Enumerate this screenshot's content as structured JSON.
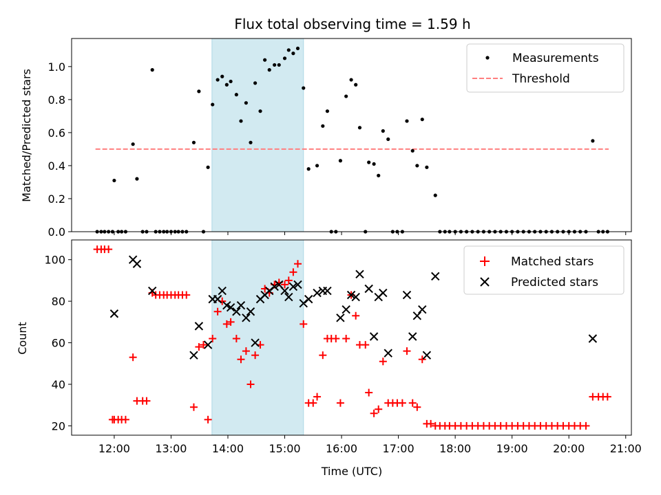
{
  "chart_data": [
    {
      "type": "scatter",
      "title": "Flux total observing time = 1.59 h",
      "xlabel": "",
      "ylabel": "Matched/Predicted stars",
      "xlim": [
        11.25,
        21.1
      ],
      "ylim": [
        0,
        1.17
      ],
      "yticks": [
        0.0,
        0.2,
        0.4,
        0.6,
        0.8,
        1.0
      ],
      "ytick_labels": [
        "0.0",
        "0.2",
        "0.4",
        "0.6",
        "0.8",
        "1.0"
      ],
      "legend_position": "top-right",
      "shaded_region": {
        "x": [
          13.72,
          15.33
        ],
        "color": "#add8e6"
      },
      "threshold": {
        "name": "Threshold",
        "value": 0.5,
        "x": [
          11.67,
          20.7
        ],
        "color": "#ff7f7f"
      },
      "measurements": {
        "name": "Measurements",
        "color": "#000000",
        "points": [
          [
            11.7,
            0
          ],
          [
            11.77,
            0
          ],
          [
            11.83,
            0
          ],
          [
            11.9,
            0
          ],
          [
            11.97,
            0
          ],
          [
            12.0,
            0.31
          ],
          [
            12.07,
            0
          ],
          [
            12.13,
            0
          ],
          [
            12.2,
            0
          ],
          [
            12.33,
            0.53
          ],
          [
            12.4,
            0.32
          ],
          [
            12.5,
            0
          ],
          [
            12.57,
            0
          ],
          [
            12.67,
            0.98
          ],
          [
            12.73,
            0
          ],
          [
            12.8,
            0
          ],
          [
            12.87,
            0
          ],
          [
            12.93,
            0
          ],
          [
            13.0,
            0
          ],
          [
            13.07,
            0
          ],
          [
            13.13,
            0
          ],
          [
            13.2,
            0
          ],
          [
            13.27,
            0
          ],
          [
            13.4,
            0.54
          ],
          [
            13.49,
            0.85
          ],
          [
            13.57,
            0
          ],
          [
            13.65,
            0.39
          ],
          [
            13.73,
            0.77
          ],
          [
            13.82,
            0.92
          ],
          [
            13.9,
            0.94
          ],
          [
            13.98,
            0.89
          ],
          [
            14.05,
            0.91
          ],
          [
            14.15,
            0.83
          ],
          [
            14.23,
            0.67
          ],
          [
            14.32,
            0.78
          ],
          [
            14.4,
            0.54
          ],
          [
            14.48,
            0.9
          ],
          [
            14.57,
            0.73
          ],
          [
            14.65,
            1.04
          ],
          [
            14.73,
            0.98
          ],
          [
            14.82,
            1.01
          ],
          [
            14.9,
            1.01
          ],
          [
            15.0,
            1.05
          ],
          [
            15.07,
            1.1
          ],
          [
            15.15,
            1.08
          ],
          [
            15.23,
            1.11
          ],
          [
            15.33,
            0.87
          ],
          [
            15.42,
            0.38
          ],
          [
            15.57,
            0.4
          ],
          [
            15.67,
            0.64
          ],
          [
            15.75,
            0.73
          ],
          [
            15.82,
            0
          ],
          [
            15.9,
            0
          ],
          [
            15.98,
            0.43
          ],
          [
            16.08,
            0.82
          ],
          [
            16.17,
            0.92
          ],
          [
            16.25,
            0.89
          ],
          [
            16.32,
            0.63
          ],
          [
            16.42,
            0
          ],
          [
            16.48,
            0.42
          ],
          [
            16.57,
            0.41
          ],
          [
            16.65,
            0.34
          ],
          [
            16.73,
            0.61
          ],
          [
            16.82,
            0.56
          ],
          [
            16.9,
            0
          ],
          [
            16.98,
            0
          ],
          [
            17.07,
            0
          ],
          [
            17.15,
            0.67
          ],
          [
            17.25,
            0.49
          ],
          [
            17.33,
            0.4
          ],
          [
            17.42,
            0.68
          ],
          [
            17.5,
            0.39
          ],
          [
            17.65,
            0.22
          ],
          [
            17.73,
            0
          ],
          [
            17.82,
            0
          ],
          [
            17.9,
            0
          ],
          [
            18.0,
            0
          ],
          [
            18.1,
            0
          ],
          [
            18.2,
            0
          ],
          [
            18.3,
            0
          ],
          [
            18.4,
            0
          ],
          [
            18.5,
            0
          ],
          [
            18.6,
            0
          ],
          [
            18.7,
            0
          ],
          [
            18.8,
            0
          ],
          [
            18.9,
            0
          ],
          [
            19.0,
            0
          ],
          [
            19.1,
            0
          ],
          [
            19.2,
            0
          ],
          [
            19.3,
            0
          ],
          [
            19.4,
            0
          ],
          [
            19.5,
            0
          ],
          [
            19.6,
            0
          ],
          [
            19.7,
            0
          ],
          [
            19.8,
            0
          ],
          [
            19.9,
            0
          ],
          [
            20.0,
            0
          ],
          [
            20.1,
            0
          ],
          [
            20.2,
            0
          ],
          [
            20.3,
            0
          ],
          [
            20.42,
            0.55
          ],
          [
            20.52,
            0
          ],
          [
            20.6,
            0
          ],
          [
            20.68,
            0
          ]
        ]
      }
    },
    {
      "type": "scatter",
      "title": "",
      "xlabel": "Time (UTC)",
      "ylabel": "Count",
      "xlim": [
        11.25,
        21.1
      ],
      "ylim": [
        15.5,
        109.5
      ],
      "yticks": [
        20,
        40,
        60,
        80,
        100
      ],
      "ytick_labels": [
        "20",
        "40",
        "60",
        "80",
        "100"
      ],
      "xticks": [
        12,
        13,
        14,
        15,
        16,
        17,
        18,
        19,
        20,
        21
      ],
      "xtick_labels": [
        "12:00",
        "13:00",
        "14:00",
        "15:00",
        "16:00",
        "17:00",
        "18:00",
        "19:00",
        "20:00",
        "21:00"
      ],
      "legend_position": "top-right",
      "shaded_region": {
        "x": [
          13.72,
          15.33
        ],
        "color": "#add8e6"
      },
      "series": [
        {
          "name": "Matched stars",
          "marker": "plus",
          "color": "#ff0000",
          "points": [
            [
              11.7,
              105
            ],
            [
              11.77,
              105
            ],
            [
              11.83,
              105
            ],
            [
              11.9,
              105
            ],
            [
              11.97,
              23
            ],
            [
              12.0,
              23
            ],
            [
              12.07,
              23
            ],
            [
              12.13,
              23
            ],
            [
              12.2,
              23
            ],
            [
              12.33,
              53
            ],
            [
              12.4,
              32
            ],
            [
              12.5,
              32
            ],
            [
              12.57,
              32
            ],
            [
              12.67,
              84
            ],
            [
              12.73,
              83
            ],
            [
              12.8,
              83
            ],
            [
              12.87,
              83
            ],
            [
              12.93,
              83
            ],
            [
              13.0,
              83
            ],
            [
              13.07,
              83
            ],
            [
              13.13,
              83
            ],
            [
              13.2,
              83
            ],
            [
              13.27,
              83
            ],
            [
              13.4,
              29
            ],
            [
              13.49,
              58
            ],
            [
              13.57,
              59
            ],
            [
              13.65,
              23
            ],
            [
              13.73,
              62
            ],
            [
              13.82,
              75
            ],
            [
              13.9,
              80
            ],
            [
              13.98,
              69
            ],
            [
              14.05,
              70
            ],
            [
              14.15,
              62
            ],
            [
              14.23,
              52
            ],
            [
              14.32,
              56
            ],
            [
              14.4,
              40
            ],
            [
              14.48,
              54
            ],
            [
              14.57,
              59
            ],
            [
              14.65,
              86
            ],
            [
              14.73,
              84
            ],
            [
              14.82,
              88
            ],
            [
              14.9,
              89
            ],
            [
              15.0,
              88
            ],
            [
              15.07,
              90
            ],
            [
              15.15,
              94
            ],
            [
              15.23,
              98
            ],
            [
              15.33,
              69
            ],
            [
              15.42,
              31
            ],
            [
              15.5,
              31
            ],
            [
              15.57,
              34
            ],
            [
              15.67,
              54
            ],
            [
              15.75,
              62
            ],
            [
              15.82,
              62
            ],
            [
              15.9,
              62
            ],
            [
              15.98,
              31
            ],
            [
              16.08,
              62
            ],
            [
              16.17,
              83
            ],
            [
              16.25,
              73
            ],
            [
              16.32,
              59
            ],
            [
              16.42,
              59
            ],
            [
              16.48,
              36
            ],
            [
              16.57,
              26
            ],
            [
              16.65,
              28
            ],
            [
              16.73,
              51
            ],
            [
              16.82,
              31
            ],
            [
              16.9,
              31
            ],
            [
              16.98,
              31
            ],
            [
              17.07,
              31
            ],
            [
              17.15,
              56
            ],
            [
              17.25,
              31
            ],
            [
              17.33,
              29
            ],
            [
              17.42,
              52
            ],
            [
              17.5,
              21
            ],
            [
              17.57,
              21
            ],
            [
              17.65,
              20
            ],
            [
              17.73,
              20
            ],
            [
              17.82,
              20
            ],
            [
              17.9,
              20
            ],
            [
              18.0,
              20
            ],
            [
              18.1,
              20
            ],
            [
              18.2,
              20
            ],
            [
              18.3,
              20
            ],
            [
              18.4,
              20
            ],
            [
              18.5,
              20
            ],
            [
              18.6,
              20
            ],
            [
              18.7,
              20
            ],
            [
              18.8,
              20
            ],
            [
              18.9,
              20
            ],
            [
              19.0,
              20
            ],
            [
              19.1,
              20
            ],
            [
              19.2,
              20
            ],
            [
              19.3,
              20
            ],
            [
              19.4,
              20
            ],
            [
              19.5,
              20
            ],
            [
              19.6,
              20
            ],
            [
              19.7,
              20
            ],
            [
              19.8,
              20
            ],
            [
              19.9,
              20
            ],
            [
              20.0,
              20
            ],
            [
              20.1,
              20
            ],
            [
              20.2,
              20
            ],
            [
              20.3,
              20
            ],
            [
              20.42,
              34
            ],
            [
              20.52,
              34
            ],
            [
              20.6,
              34
            ],
            [
              20.68,
              34
            ]
          ]
        },
        {
          "name": "Predicted stars",
          "marker": "x",
          "color": "#000000",
          "points": [
            [
              12.0,
              74
            ],
            [
              12.33,
              100
            ],
            [
              12.4,
              98
            ],
            [
              12.67,
              85
            ],
            [
              13.4,
              54
            ],
            [
              13.49,
              68
            ],
            [
              13.65,
              59
            ],
            [
              13.73,
              81
            ],
            [
              13.82,
              81
            ],
            [
              13.9,
              85
            ],
            [
              13.98,
              78
            ],
            [
              14.05,
              77
            ],
            [
              14.15,
              75
            ],
            [
              14.23,
              78
            ],
            [
              14.32,
              72
            ],
            [
              14.4,
              75
            ],
            [
              14.48,
              60
            ],
            [
              14.57,
              81
            ],
            [
              14.65,
              83
            ],
            [
              14.73,
              85
            ],
            [
              14.82,
              87
            ],
            [
              14.9,
              88
            ],
            [
              15.0,
              85
            ],
            [
              15.07,
              82
            ],
            [
              15.15,
              87
            ],
            [
              15.23,
              88
            ],
            [
              15.33,
              79
            ],
            [
              15.42,
              81
            ],
            [
              15.57,
              84
            ],
            [
              15.67,
              85
            ],
            [
              15.75,
              85
            ],
            [
              15.98,
              72
            ],
            [
              16.08,
              76
            ],
            [
              16.17,
              83
            ],
            [
              16.25,
              82
            ],
            [
              16.32,
              93
            ],
            [
              16.48,
              86
            ],
            [
              16.57,
              63
            ],
            [
              16.65,
              82
            ],
            [
              16.73,
              84
            ],
            [
              16.82,
              55
            ],
            [
              17.15,
              83
            ],
            [
              17.25,
              63
            ],
            [
              17.33,
              73
            ],
            [
              17.42,
              76
            ],
            [
              17.5,
              54
            ],
            [
              17.65,
              92
            ],
            [
              20.42,
              62
            ]
          ]
        }
      ]
    }
  ]
}
